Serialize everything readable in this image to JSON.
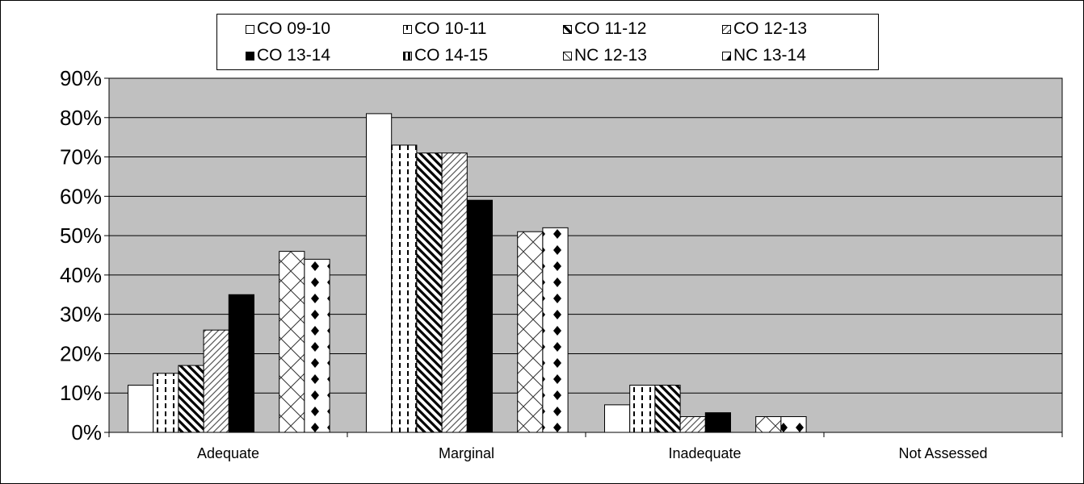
{
  "chart_data": {
    "type": "bar",
    "categories": [
      "Adequate",
      "Marginal",
      "Inadequate",
      "Not Assessed"
    ],
    "series": [
      {
        "name": "CO 09-10",
        "values": [
          12,
          81,
          7,
          0
        ],
        "pattern": "white"
      },
      {
        "name": "CO 10-11",
        "values": [
          15,
          73,
          12,
          0
        ],
        "pattern": "dash"
      },
      {
        "name": "CO 11-12",
        "values": [
          17,
          71,
          12,
          0
        ],
        "pattern": "wdiag"
      },
      {
        "name": "CO 12-13",
        "values": [
          26,
          71,
          4,
          0
        ],
        "pattern": "ndiag"
      },
      {
        "name": "CO 13-14",
        "values": [
          35,
          59,
          5,
          0
        ],
        "pattern": "black"
      },
      {
        "name": "CO 14-15",
        "values": [
          0,
          0,
          0,
          0
        ],
        "pattern": "vstripe"
      },
      {
        "name": "NC 12-13",
        "values": [
          46,
          51,
          4,
          0
        ],
        "pattern": "zigzag"
      },
      {
        "name": "NC 13-14",
        "values": [
          44,
          52,
          4,
          0
        ],
        "pattern": "diamond"
      }
    ],
    "ylim": [
      0,
      90
    ],
    "yticks": [
      "0%",
      "10%",
      "20%",
      "30%",
      "40%",
      "50%",
      "60%",
      "70%",
      "80%",
      "90%"
    ],
    "grid": true,
    "legend_position": "top",
    "colors": {
      "plot_background": "#c0c0c0",
      "gridline": "#000000",
      "bar_fill": "#ffffff",
      "bar_stroke": "#000000"
    }
  }
}
